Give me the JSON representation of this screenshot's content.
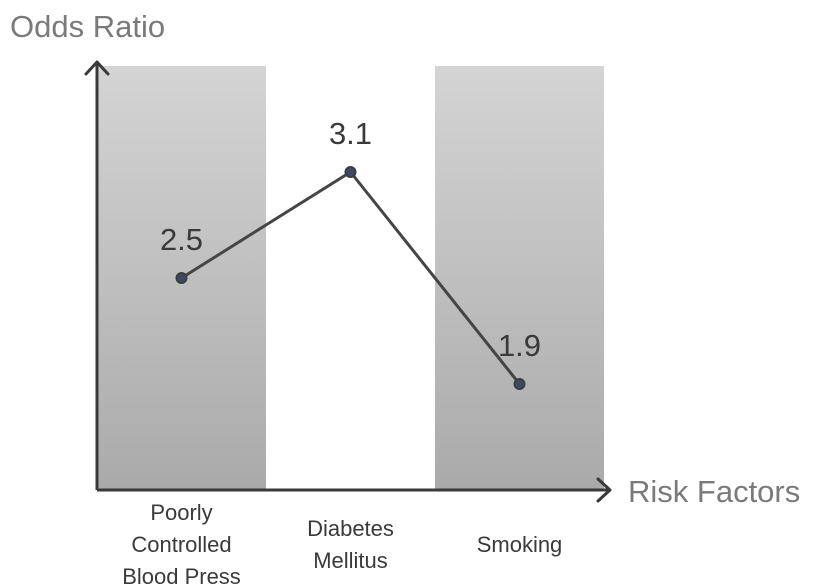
{
  "chart_data": {
    "type": "line",
    "ylabel": "Odds Ratio",
    "xlabel": "Risk Factors",
    "categories": [
      [
        "Poorly",
        "Controlled",
        "Blood Press"
      ],
      [
        "Diabetes",
        "Mellitus"
      ],
      [
        "Smoking"
      ]
    ],
    "values": [
      2.5,
      3.1,
      1.9
    ],
    "data_labels": [
      "2.5",
      "3.1",
      "1.9"
    ],
    "ylim": [
      1.3,
      3.7
    ],
    "shaded_bands": [
      true,
      false,
      true
    ],
    "grid": false,
    "colors": {
      "line": "#454545",
      "marker_fill": "#3c4a66",
      "marker_stroke": "#3d3d3d",
      "axis": "#3a3a3a",
      "band_top": "#d4d4d4",
      "band_bottom": "#aaaaaa"
    }
  }
}
